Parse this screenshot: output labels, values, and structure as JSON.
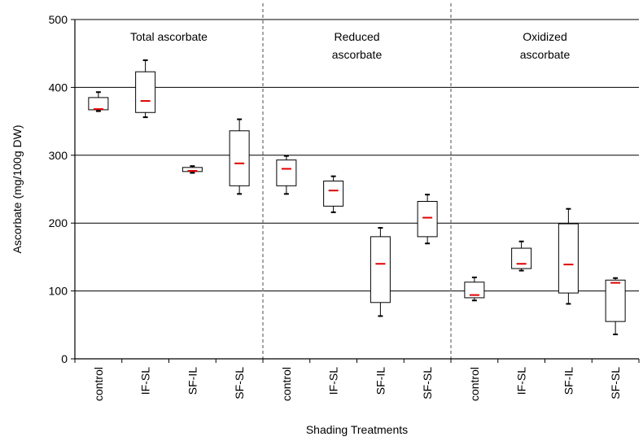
{
  "chart_data": {
    "type": "box",
    "title": "",
    "xlabel": "Shading Treatments",
    "ylabel": "Ascorbate (mg/100g DW)",
    "ylim": [
      0,
      500
    ],
    "yticks": [
      "0",
      "100",
      "200",
      "300",
      "400",
      "500"
    ],
    "grid": "horizontal",
    "groups": [
      {
        "label_lines": [
          "Total ascorbate"
        ],
        "categories": [
          "control",
          "IF-SL",
          "SF-IL",
          "SF-SL"
        ],
        "boxes": [
          {
            "min": 365,
            "q1": 367,
            "median": 368,
            "q3": 385,
            "max": 393
          },
          {
            "min": 356,
            "q1": 363,
            "median": 380,
            "q3": 423,
            "max": 440
          },
          {
            "min": 274,
            "q1": 276,
            "median": 277,
            "q3": 282,
            "max": 284
          },
          {
            "min": 243,
            "q1": 255,
            "median": 288,
            "q3": 336,
            "max": 353
          }
        ]
      },
      {
        "label_lines": [
          "Reduced",
          "ascorbate"
        ],
        "categories": [
          "control",
          "IF-SL",
          "SF-IL",
          "SF-SL"
        ],
        "boxes": [
          {
            "min": 243,
            "q1": 255,
            "median": 280,
            "q3": 293,
            "max": 299
          },
          {
            "min": 216,
            "q1": 225,
            "median": 248,
            "q3": 262,
            "max": 269
          },
          {
            "min": 63,
            "q1": 83,
            "median": 140,
            "q3": 180,
            "max": 193
          },
          {
            "min": 170,
            "q1": 180,
            "median": 208,
            "q3": 232,
            "max": 242
          }
        ]
      },
      {
        "label_lines": [
          "Oxidized",
          "ascorbate"
        ],
        "categories": [
          "control",
          "IF-SL",
          "SF-IL",
          "SF-SL"
        ],
        "boxes": [
          {
            "min": 86,
            "q1": 90,
            "median": 94,
            "q3": 113,
            "max": 120
          },
          {
            "min": 130,
            "q1": 133,
            "median": 140,
            "q3": 163,
            "max": 173
          },
          {
            "min": 81,
            "q1": 97,
            "median": 139,
            "q3": 199,
            "max": 221
          },
          {
            "min": 36,
            "q1": 55,
            "median": 112,
            "q3": 116,
            "max": 119
          }
        ]
      }
    ],
    "colors": {
      "median": "#e00000",
      "box": "#000000",
      "grid": "#000000",
      "divider": "#808080"
    }
  }
}
